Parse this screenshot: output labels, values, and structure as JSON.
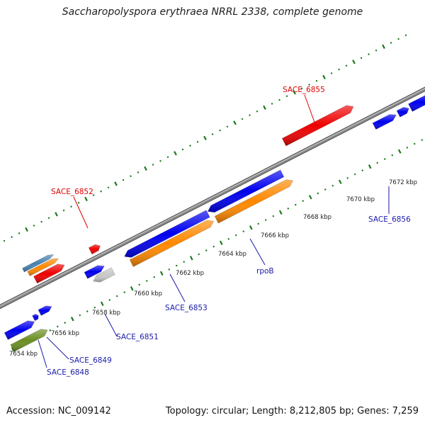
{
  "title": "Saccharopolyspora erythraea NRRL 2338, complete genome",
  "footer": {
    "accession": "Accession: NC_009142",
    "summary": "Topology: circular; Length: 8,212,805 bp; Genes: 7,259"
  },
  "colors": {
    "backbone": "#888888",
    "tick": "#1a7a1a",
    "label_red": "#dd0000",
    "label_blue": "#1a1aaa",
    "gene_blue": "#0000ee",
    "gene_red": "#ee0000",
    "gene_orange": "#ff8800",
    "gene_gray": "#c8c8c8",
    "gene_olive": "#6b8e23",
    "gene_steel": "#4682b4",
    "gene_olive2": "#a8d08d"
  },
  "scale_labels": [
    "7654 kbp",
    "7656 kbp",
    "7658 kbp",
    "7660 kbp",
    "7662 kbp",
    "7664 kbp",
    "7666 kbp",
    "7668 kbp",
    "7670 kbp",
    "7672 kbp"
  ],
  "gene_labels": [
    {
      "text": "SACE_6855",
      "color": "red"
    },
    {
      "text": "SACE_6852",
      "color": "red"
    },
    {
      "text": "SACE_6856",
      "color": "blue"
    },
    {
      "text": "rpoB",
      "color": "blue"
    },
    {
      "text": "SACE_6853",
      "color": "blue"
    },
    {
      "text": "SACE_6851",
      "color": "blue"
    },
    {
      "text": "SACE_6849",
      "color": "blue"
    },
    {
      "text": "SACE_6848",
      "color": "blue"
    }
  ]
}
